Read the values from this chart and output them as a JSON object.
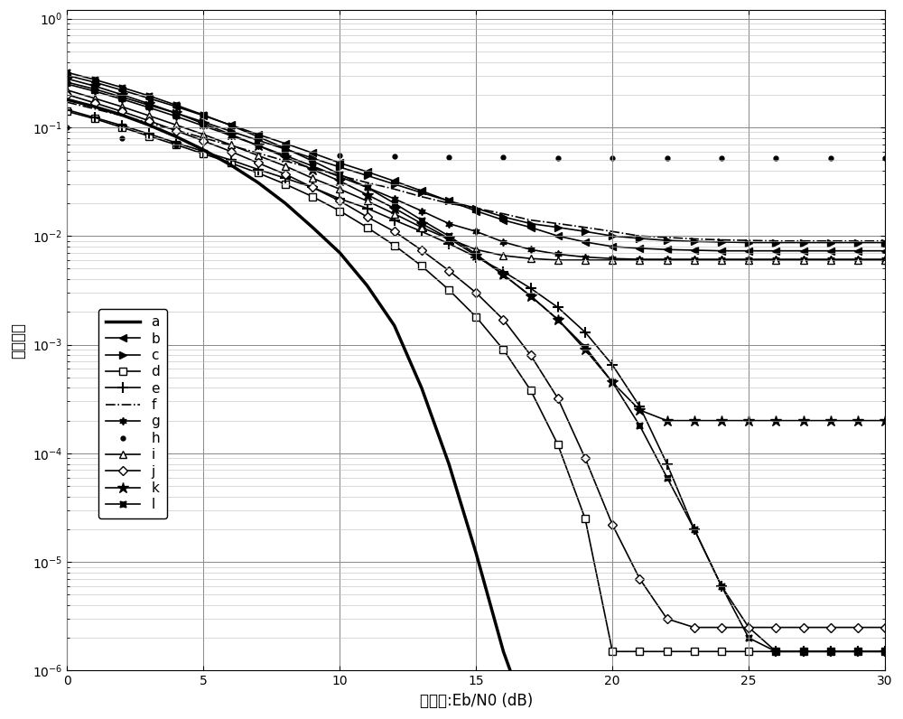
{
  "xlabel": "信噪比:Eb/N0 (dB)",
  "ylabel": "误比特率",
  "xlim": [
    0,
    30
  ],
  "ylim": [
    1e-06,
    1.0
  ],
  "x_ticks": [
    0,
    5,
    10,
    15,
    20,
    25,
    30
  ],
  "legend_labels": [
    "a",
    "b",
    "c",
    "d",
    "e",
    "f",
    "g",
    "h",
    "i",
    "j",
    "k",
    "l"
  ],
  "series_a": {
    "x": [
      0,
      1,
      2,
      3,
      4,
      5,
      6,
      7,
      8,
      9,
      10,
      11,
      12,
      13,
      14,
      15,
      16,
      17,
      18,
      19,
      20
    ],
    "y": [
      0.18,
      0.155,
      0.13,
      0.105,
      0.082,
      0.062,
      0.045,
      0.031,
      0.02,
      0.012,
      0.007,
      0.0035,
      0.0015,
      0.0004,
      8e-05,
      1.2e-05,
      1.5e-06,
      3e-07,
      1e-07,
      1e-07,
      1e-07
    ]
  },
  "series_b": {
    "x": [
      0,
      1,
      2,
      3,
      4,
      5,
      6,
      7,
      8,
      9,
      10,
      11,
      12,
      13,
      14,
      15,
      16,
      17,
      18,
      19,
      20,
      21,
      22,
      23,
      24,
      25,
      26,
      27,
      28,
      29,
      30
    ],
    "y": [
      0.3,
      0.26,
      0.22,
      0.185,
      0.155,
      0.128,
      0.105,
      0.086,
      0.071,
      0.058,
      0.047,
      0.039,
      0.032,
      0.026,
      0.021,
      0.017,
      0.014,
      0.012,
      0.01,
      0.0088,
      0.008,
      0.0077,
      0.0075,
      0.0074,
      0.0073,
      0.0073,
      0.0073,
      0.0073,
      0.0073,
      0.0073,
      0.0073
    ]
  },
  "series_c": {
    "x": [
      0,
      1,
      2,
      3,
      4,
      5,
      6,
      7,
      8,
      9,
      10,
      11,
      12,
      13,
      14,
      15,
      16,
      17,
      18,
      19,
      20,
      21,
      22,
      23,
      24,
      25,
      26,
      27,
      28,
      29,
      30
    ],
    "y": [
      0.26,
      0.225,
      0.19,
      0.16,
      0.135,
      0.112,
      0.092,
      0.076,
      0.063,
      0.052,
      0.043,
      0.036,
      0.03,
      0.025,
      0.021,
      0.018,
      0.015,
      0.013,
      0.012,
      0.011,
      0.01,
      0.0095,
      0.0091,
      0.0089,
      0.0088,
      0.0087,
      0.0087,
      0.0087,
      0.0087,
      0.0087,
      0.0087
    ]
  },
  "series_d": {
    "x": [
      0,
      1,
      2,
      3,
      4,
      5,
      6,
      7,
      8,
      9,
      10,
      11,
      12,
      13,
      14,
      15,
      16,
      17,
      18,
      19,
      20,
      21,
      22,
      23,
      24,
      25,
      26,
      27,
      28,
      29,
      30
    ],
    "y": [
      0.14,
      0.12,
      0.1,
      0.083,
      0.069,
      0.057,
      0.047,
      0.038,
      0.03,
      0.023,
      0.017,
      0.012,
      0.0082,
      0.0053,
      0.0032,
      0.0018,
      0.0009,
      0.00038,
      0.00012,
      2.5e-05,
      1.5e-06,
      1.5e-06,
      1.5e-06,
      1.5e-06,
      1.5e-06,
      1.5e-06,
      1.5e-06,
      1.5e-06,
      1.5e-06,
      1.5e-06,
      1.5e-06
    ]
  },
  "series_e": {
    "x": [
      0,
      1,
      2,
      3,
      4,
      5,
      6,
      7,
      8,
      9,
      10,
      11,
      12,
      13,
      14,
      15,
      16,
      17,
      18,
      19,
      20,
      21,
      22,
      23,
      24,
      25,
      26,
      27,
      28,
      29,
      30
    ],
    "y": [
      0.145,
      0.123,
      0.104,
      0.087,
      0.072,
      0.06,
      0.05,
      0.041,
      0.034,
      0.028,
      0.022,
      0.018,
      0.014,
      0.011,
      0.0085,
      0.0064,
      0.0047,
      0.0033,
      0.0022,
      0.0013,
      0.00065,
      0.00027,
      8e-05,
      2e-05,
      6e-06,
      2.5e-06,
      1.5e-06,
      1.5e-06,
      1.5e-06,
      1.5e-06,
      1.5e-06
    ]
  },
  "series_f": {
    "x": [
      0,
      1,
      2,
      3,
      4,
      5,
      6,
      7,
      8,
      9,
      10,
      11,
      12,
      13,
      14,
      15,
      16,
      17,
      18,
      19,
      20,
      21,
      22,
      23,
      24,
      25,
      26,
      27,
      28,
      29,
      30
    ],
    "y": [
      0.17,
      0.148,
      0.128,
      0.11,
      0.094,
      0.08,
      0.068,
      0.058,
      0.049,
      0.042,
      0.036,
      0.031,
      0.027,
      0.023,
      0.02,
      0.018,
      0.016,
      0.014,
      0.013,
      0.012,
      0.011,
      0.01,
      0.0097,
      0.0094,
      0.0092,
      0.0091,
      0.009,
      0.009,
      0.009,
      0.009,
      0.009
    ]
  },
  "series_g": {
    "x": [
      0,
      1,
      2,
      3,
      4,
      5,
      6,
      7,
      8,
      9,
      10,
      11,
      12,
      13,
      14,
      15,
      16,
      17,
      18,
      19,
      20,
      21,
      22,
      23,
      24,
      25,
      26,
      27,
      28,
      29,
      30
    ],
    "y": [
      0.25,
      0.215,
      0.182,
      0.152,
      0.126,
      0.103,
      0.084,
      0.068,
      0.055,
      0.044,
      0.035,
      0.028,
      0.022,
      0.017,
      0.013,
      0.011,
      0.0088,
      0.0075,
      0.0068,
      0.0064,
      0.0062,
      0.0061,
      0.0061,
      0.0061,
      0.0061,
      0.0061,
      0.0061,
      0.0061,
      0.0061,
      0.0061,
      0.0061
    ]
  },
  "series_h": {
    "x": [
      0,
      2,
      4,
      6,
      8,
      10,
      12,
      14,
      16,
      18,
      20,
      22,
      24,
      26,
      28,
      30
    ],
    "y": [
      0.1,
      0.08,
      0.068,
      0.062,
      0.058,
      0.055,
      0.054,
      0.053,
      0.053,
      0.052,
      0.052,
      0.052,
      0.052,
      0.052,
      0.052,
      0.052
    ]
  },
  "series_i": {
    "x": [
      0,
      1,
      2,
      3,
      4,
      5,
      6,
      7,
      8,
      9,
      10,
      11,
      12,
      13,
      14,
      15,
      16,
      17,
      18,
      19,
      20,
      21,
      22,
      23,
      24,
      25,
      26,
      27,
      28,
      29,
      30
    ],
    "y": [
      0.22,
      0.185,
      0.155,
      0.128,
      0.105,
      0.086,
      0.069,
      0.055,
      0.044,
      0.034,
      0.027,
      0.021,
      0.016,
      0.012,
      0.0094,
      0.0075,
      0.0066,
      0.0062,
      0.006,
      0.006,
      0.006,
      0.006,
      0.006,
      0.006,
      0.006,
      0.006,
      0.006,
      0.006,
      0.006,
      0.006,
      0.006
    ]
  },
  "series_j": {
    "x": [
      0,
      1,
      2,
      3,
      4,
      5,
      6,
      7,
      8,
      9,
      10,
      11,
      12,
      13,
      14,
      15,
      16,
      17,
      18,
      19,
      20,
      21,
      22,
      23,
      24,
      25,
      26,
      27,
      28,
      29,
      30
    ],
    "y": [
      0.2,
      0.168,
      0.14,
      0.115,
      0.093,
      0.075,
      0.06,
      0.047,
      0.037,
      0.028,
      0.021,
      0.015,
      0.011,
      0.0074,
      0.0048,
      0.003,
      0.0017,
      0.0008,
      0.00032,
      9e-05,
      2.2e-05,
      7e-06,
      3e-06,
      2.5e-06,
      2.5e-06,
      2.5e-06,
      2.5e-06,
      2.5e-06,
      2.5e-06,
      2.5e-06,
      2.5e-06
    ]
  },
  "series_k": {
    "x": [
      0,
      1,
      2,
      3,
      4,
      5,
      6,
      7,
      8,
      9,
      10,
      11,
      12,
      13,
      14,
      15,
      16,
      17,
      18,
      19,
      20,
      21,
      22,
      23,
      24,
      25,
      26,
      27,
      28,
      29,
      30
    ],
    "y": [
      0.28,
      0.24,
      0.2,
      0.165,
      0.135,
      0.108,
      0.086,
      0.068,
      0.053,
      0.041,
      0.032,
      0.024,
      0.018,
      0.013,
      0.0095,
      0.0066,
      0.0044,
      0.0028,
      0.0017,
      0.0009,
      0.00045,
      0.00025,
      0.0002,
      0.0002,
      0.0002,
      0.0002,
      0.0002,
      0.0002,
      0.0002,
      0.0002,
      0.0002
    ]
  },
  "series_l": {
    "x": [
      0,
      1,
      2,
      3,
      4,
      5,
      6,
      7,
      8,
      9,
      10,
      11,
      12,
      13,
      14,
      15,
      16,
      17,
      18,
      19,
      20,
      21,
      22,
      23,
      24,
      25,
      26,
      27,
      28,
      29,
      30
    ],
    "y": [
      0.32,
      0.275,
      0.233,
      0.195,
      0.16,
      0.13,
      0.104,
      0.082,
      0.064,
      0.049,
      0.037,
      0.028,
      0.02,
      0.014,
      0.01,
      0.0068,
      0.0044,
      0.0028,
      0.0017,
      0.00095,
      0.00045,
      0.00018,
      6e-05,
      2e-05,
      6e-06,
      2e-06,
      1.5e-06,
      1.5e-06,
      1.5e-06,
      1.5e-06,
      1.5e-06
    ]
  }
}
